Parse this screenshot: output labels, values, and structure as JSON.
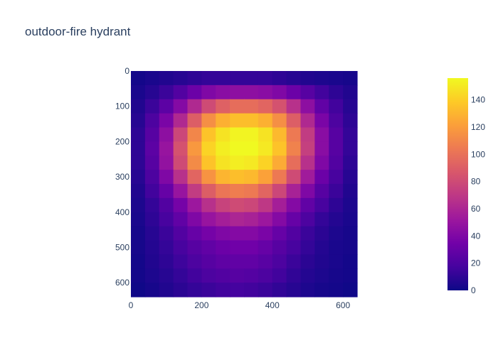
{
  "chart_data": {
    "type": "heatmap",
    "title": "outdoor-fire hydrant",
    "x_range": [
      0,
      640
    ],
    "y_range": [
      0,
      640
    ],
    "y_reversed": true,
    "x_ticks": [
      0,
      200,
      400,
      600
    ],
    "y_ticks": [
      0,
      100,
      200,
      300,
      400,
      500,
      600
    ],
    "x_tick_labels": [
      "0",
      "200",
      "400",
      "600"
    ],
    "y_tick_labels": [
      "0",
      "100",
      "200",
      "300",
      "400",
      "500",
      "600"
    ],
    "colorbar": {
      "min": 0,
      "max": 156,
      "ticks": [
        0,
        20,
        40,
        60,
        80,
        100,
        120,
        140
      ],
      "tick_labels": [
        "0",
        "20",
        "40",
        "60",
        "80",
        "100",
        "120",
        "140"
      ],
      "colorscale": [
        "#0d0887",
        "#46039f",
        "#7201a8",
        "#9c179e",
        "#bd3786",
        "#d8576b",
        "#ed7953",
        "#fb9f3a",
        "#fdca26",
        "#f0f921"
      ]
    },
    "grid_shape": [
      16,
      16
    ],
    "grid_cell_size": 40,
    "z": [
      [
        2,
        4,
        6,
        8,
        10,
        12,
        12,
        12,
        12,
        12,
        10,
        8,
        6,
        5,
        4,
        3
      ],
      [
        4,
        8,
        14,
        22,
        32,
        40,
        44,
        46,
        46,
        44,
        40,
        32,
        24,
        16,
        10,
        6
      ],
      [
        6,
        14,
        26,
        42,
        62,
        80,
        92,
        98,
        98,
        94,
        84,
        66,
        46,
        28,
        16,
        8
      ],
      [
        8,
        20,
        38,
        62,
        90,
        114,
        128,
        134,
        134,
        128,
        114,
        90,
        62,
        38,
        20,
        10
      ],
      [
        10,
        24,
        46,
        78,
        110,
        136,
        148,
        154,
        154,
        148,
        132,
        104,
        72,
        44,
        24,
        12
      ],
      [
        10,
        26,
        50,
        84,
        118,
        142,
        152,
        156,
        156,
        150,
        136,
        108,
        74,
        44,
        24,
        12
      ],
      [
        10,
        24,
        48,
        80,
        112,
        136,
        148,
        152,
        150,
        142,
        126,
        98,
        66,
        40,
        22,
        10
      ],
      [
        8,
        20,
        40,
        66,
        94,
        116,
        130,
        134,
        132,
        122,
        104,
        80,
        54,
        32,
        18,
        8
      ],
      [
        6,
        16,
        30,
        50,
        72,
        90,
        102,
        106,
        104,
        94,
        78,
        58,
        40,
        24,
        14,
        6
      ],
      [
        5,
        12,
        22,
        36,
        52,
        66,
        76,
        80,
        78,
        70,
        56,
        42,
        28,
        18,
        10,
        5
      ],
      [
        4,
        10,
        18,
        28,
        40,
        50,
        56,
        60,
        58,
        52,
        42,
        30,
        20,
        12,
        7,
        4
      ],
      [
        3,
        8,
        14,
        22,
        30,
        36,
        40,
        42,
        42,
        38,
        30,
        22,
        14,
        9,
        5,
        3
      ],
      [
        3,
        7,
        12,
        18,
        24,
        28,
        32,
        34,
        34,
        30,
        24,
        18,
        12,
        7,
        4,
        3
      ],
      [
        2,
        6,
        10,
        15,
        20,
        24,
        27,
        28,
        28,
        25,
        20,
        14,
        9,
        6,
        4,
        2
      ],
      [
        2,
        5,
        8,
        12,
        16,
        20,
        22,
        24,
        23,
        20,
        16,
        11,
        7,
        5,
        3,
        2
      ],
      [
        1,
        3,
        6,
        9,
        12,
        14,
        16,
        17,
        16,
        14,
        11,
        8,
        5,
        3,
        2,
        1
      ]
    ]
  }
}
